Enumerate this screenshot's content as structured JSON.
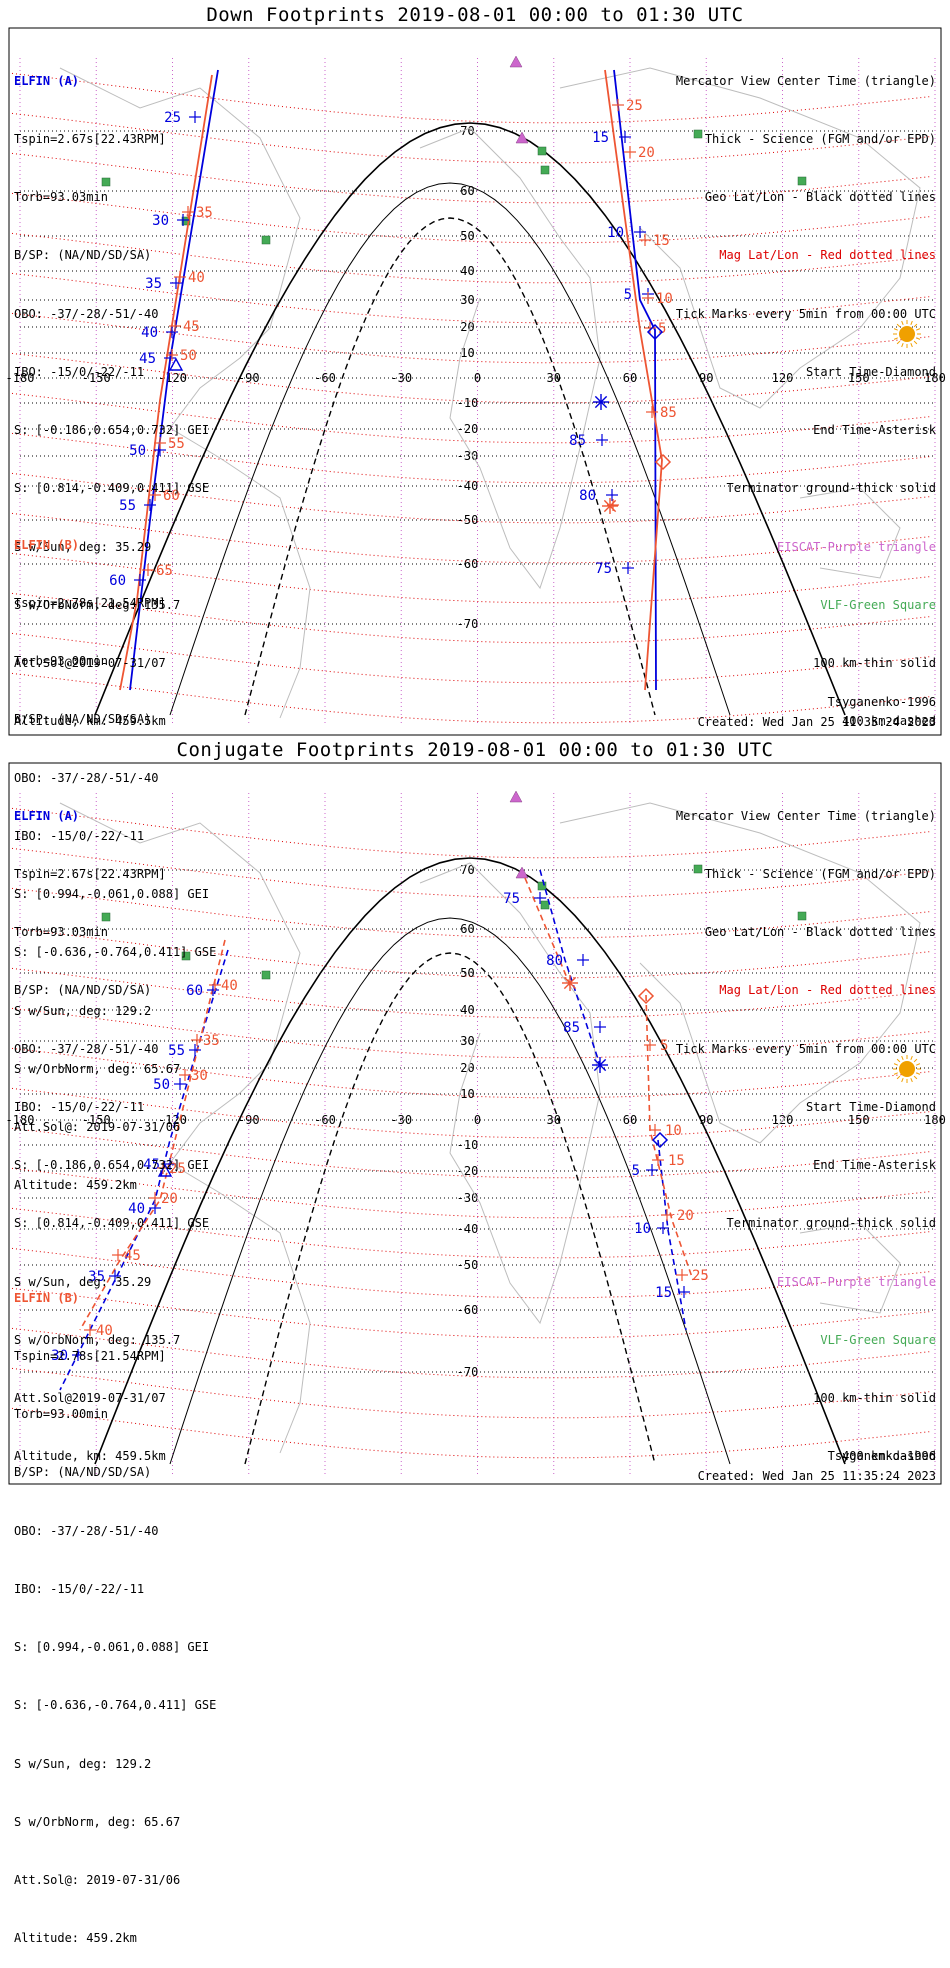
{
  "titles": {
    "down": "Down Footprints 2019-08-01 00:00 to 01:30 UTC",
    "conj": "Conjugate Footprints 2019-08-01 00:00 to 01:30 UTC"
  },
  "colors": {
    "elfin_a": "#0000dd",
    "elfin_b": "#ee5533",
    "mag_grid": "#dd0000",
    "geo_grid": "#000000",
    "lon_dots": "#cc66cc",
    "fgm_epd_triangle": "#cc66cc",
    "vlf_square": "#44aa55",
    "sun": "#f0a000"
  },
  "elfin_a": {
    "header": "ELFIN (A)",
    "lines": [
      "Tspin=2.67s[22.43RPM]",
      "Torb=93.03min",
      "B/SP: (NA/ND/SD/SA)",
      "OBO: -37/-28/-51/-40",
      "IBO: -15/0/-22/-11",
      "S: [-0.186,0.654,0.732] GEI",
      "S: [0.814,-0.409,0.411] GSE",
      "S w/Sun, deg: 35.29",
      "S w/OrbNorm, deg: 135.7",
      "Att.Sol@2019-07-31/07",
      "Altitude, km: 459.5km"
    ]
  },
  "elfin_b": {
    "header": "ELFIN (B)",
    "lines": [
      "Tspin=2.78s[21.54RPM]",
      "Torb=93.00min",
      "B/SP: (NA/ND/SD/SA)",
      "OBO: -37/-28/-51/-40",
      "IBO: -15/0/-22/-11",
      "S: [0.994,-0.061,0.088] GEI",
      "S: [-0.636,-0.764,0.411] GSE",
      "S w/Sun, deg: 129.2",
      "S w/OrbNorm, deg: 65.67",
      "Att.Sol@: 2019-07-31/06",
      "Altitude: 459.2km"
    ]
  },
  "legend": [
    "Mercator View Center Time (triangle)",
    "Thick - Science (FGM and/or EPD)",
    "Geo Lat/Lon - Black dotted lines",
    "Mag Lat/Lon - Red dotted lines",
    "Tick Marks every 5min from 00:00 UTC",
    "Start Time-Diamond",
    "End Time-Asterisk",
    "Terminator ground-thick solid",
    "EISCAT-Purple triangle",
    "VLF-Green Square",
    "100 km-thin solid",
    "400 km-dashed"
  ],
  "model": "Tsyganenko-1996",
  "created": "Created: Wed Jan 25 11:35:24 2023",
  "map": {
    "lon_ticks": [
      "-180",
      "-150",
      "-120",
      "-90",
      "-60",
      "-30",
      "0",
      "30",
      "60",
      "90",
      "120",
      "150",
      "180"
    ],
    "lat_ticks": [
      "70",
      "60",
      "50",
      "40",
      "30",
      "20",
      "10",
      "-10",
      "-20",
      "-30",
      "-40",
      "-50",
      "-60",
      "-70"
    ]
  },
  "tracks": {
    "down_a_labels": [
      "25",
      "30",
      "35",
      "40",
      "45",
      "50",
      "55",
      "60",
      "15",
      "10",
      "5",
      "85",
      "80",
      "75"
    ],
    "down_b_labels": [
      "35",
      "40",
      "45",
      "50",
      "55",
      "60",
      "65",
      "25",
      "20",
      "15",
      "10",
      "5",
      "85"
    ],
    "conj_a_labels": [
      "75",
      "80",
      "85",
      "60",
      "55",
      "50",
      "45",
      "40",
      "35",
      "30",
      "5",
      "10",
      "15"
    ],
    "conj_b_labels": [
      "40",
      "35",
      "30",
      "25",
      "20",
      "45",
      "5",
      "10",
      "15",
      "20",
      "25"
    ]
  }
}
